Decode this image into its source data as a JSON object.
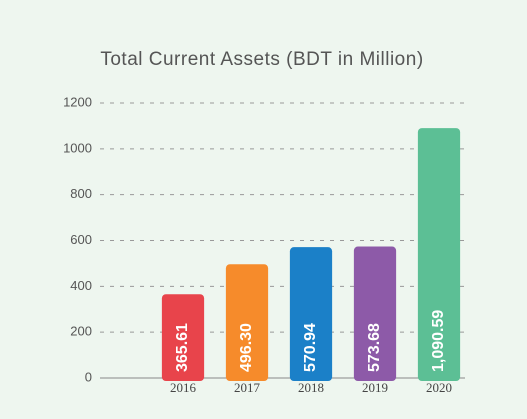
{
  "chart_data": {
    "type": "bar",
    "title": "Total Current Assets (BDT in Million)",
    "categories": [
      "2016",
      "2017",
      "2018",
      "2019",
      "2020"
    ],
    "values": [
      365.61,
      496.3,
      570.94,
      573.68,
      1090.59
    ],
    "value_labels": [
      "365.61",
      "496.30",
      "570.94",
      "573.68",
      "1,090.59"
    ],
    "colors": [
      "#e8444b",
      "#f68b2b",
      "#1b80c8",
      "#8d5aa8",
      "#5cbf95"
    ],
    "ylim": [
      0,
      1200
    ],
    "yticks": [
      0,
      200,
      400,
      600,
      800,
      1000,
      1200
    ],
    "grid": true
  }
}
